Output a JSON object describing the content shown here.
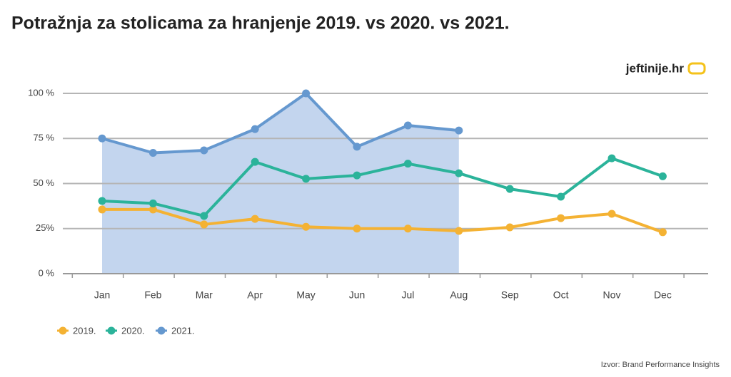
{
  "chart_data": {
    "type": "line",
    "title": "Potražnja za stolicama za hranjenje 2019. vs 2020. vs 2021.",
    "brand": "jeftinije.hr",
    "source": "Izvor: Brand Performance Insights",
    "categories": [
      "Jan",
      "Feb",
      "Mar",
      "Apr",
      "May",
      "Jun",
      "Jul",
      "Aug",
      "Sep",
      "Oct",
      "Nov",
      "Dec"
    ],
    "series": [
      {
        "name": "2019.",
        "color": "#f4b233",
        "values": [
          35.6,
          35.6,
          27.3,
          30.4,
          26,
          25,
          25,
          23.7,
          25.7,
          30.8,
          33.2,
          23
        ]
      },
      {
        "name": "2020.",
        "color": "#2bb39a",
        "values": [
          40.3,
          39,
          32,
          62,
          52.6,
          54.5,
          61,
          55.7,
          47,
          42.7,
          64,
          54
        ]
      },
      {
        "name": "2021.",
        "color": "#6598cf",
        "fill": "#c3d5ee",
        "values": [
          75,
          67,
          68.4,
          80.2,
          100,
          70.4,
          82.2,
          79.4,
          null,
          null,
          null,
          null
        ]
      }
    ],
    "ylim": [
      0,
      100
    ],
    "yticks": [
      {
        "value": 0,
        "label": "0 %"
      },
      {
        "value": 25,
        "label": "25%"
      },
      {
        "value": 50,
        "label": "50 %"
      },
      {
        "value": 75,
        "label": "75 %"
      },
      {
        "value": 100,
        "label": "100 %"
      }
    ],
    "grid": true
  }
}
